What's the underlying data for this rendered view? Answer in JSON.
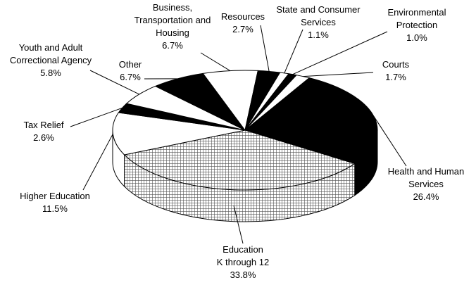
{
  "chart_data": {
    "type": "pie3d",
    "categories": [
      "Health and Human\nServices",
      "Education\nK through 12",
      "Higher Education",
      "Tax Relief",
      "Youth and Adult\nCorrectional Agency",
      "Other",
      "Business,\nTransportation and\nHousing",
      "Resources",
      "State and Consumer\nServices",
      "Environmental\nProtection",
      "Courts"
    ],
    "values": [
      26.4,
      33.8,
      11.5,
      2.6,
      5.8,
      6.7,
      6.7,
      2.7,
      1.1,
      1.0,
      1.7
    ],
    "value_labels": [
      "26.4%",
      "33.8%",
      "11.5%",
      "2.6%",
      "5.8%",
      "6.7%",
      "6.7%",
      "2.7%",
      "1.1%",
      "1.0%",
      "1.7%"
    ],
    "colors": [
      "#000000",
      "#9a9a9a",
      "#ffffff",
      "#000000",
      "#ffffff",
      "#000000",
      "#ffffff",
      "#000000",
      "#ffffff",
      "#000000",
      "#ffffff"
    ],
    "hatch": [
      false,
      true,
      false,
      false,
      false,
      false,
      false,
      false,
      false,
      false,
      false
    ],
    "legend": false
  }
}
